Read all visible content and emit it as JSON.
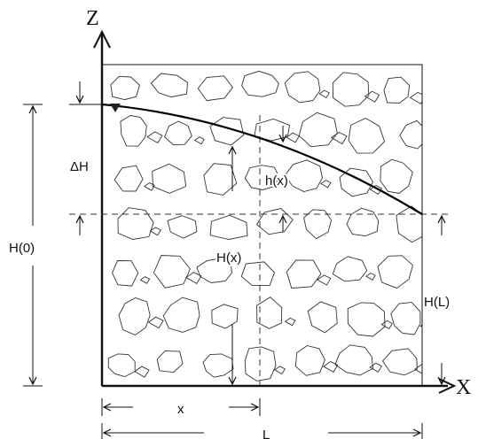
{
  "labels": {
    "z_axis": "Z",
    "x_axis": "X",
    "delta_h": "ΔH",
    "h_of_x_small": "h(x)",
    "h_of_0": "H(0)",
    "h_of_x": "H(x)",
    "h_of_l": "H(L)",
    "x_dim": "x",
    "l_dim": "L"
  },
  "icons": {
    "water_table_marker": "inverted-triangle-icon",
    "soil_texture": "gravel-stones"
  }
}
